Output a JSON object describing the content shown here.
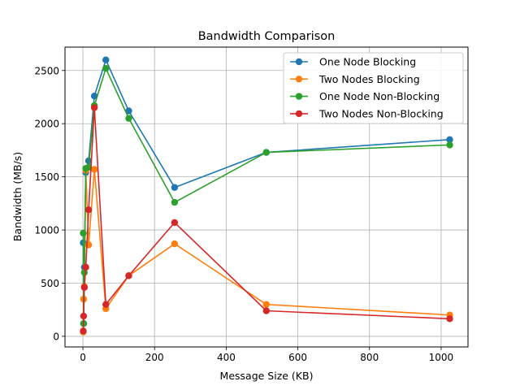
{
  "chart_data": {
    "type": "line",
    "title": "Bandwidth Comparison",
    "xlabel": "Message Size (KB)",
    "ylabel": "Bandwidth (MB/s)",
    "xlim": [
      -50,
      1075
    ],
    "ylim": [
      -100,
      2720
    ],
    "xticks": [
      0,
      200,
      400,
      600,
      800,
      1000
    ],
    "yticks": [
      0,
      500,
      1000,
      1500,
      2000,
      2500
    ],
    "grid": true,
    "legend_position": "top-right",
    "x": [
      1,
      2,
      4,
      8,
      16,
      32,
      64,
      128,
      256,
      512,
      1024
    ],
    "series": [
      {
        "name": "One Node Blocking",
        "color": "#1f77b4",
        "values": [
          880,
          120,
          650,
          1540,
          1650,
          2260,
          2600,
          2120,
          1400,
          1730,
          1850
        ]
      },
      {
        "name": "Two Nodes Blocking",
        "color": "#ff7f0e",
        "values": [
          40,
          350,
          470,
          1560,
          860,
          1570,
          260,
          570,
          870,
          300,
          200
        ]
      },
      {
        "name": "One Node Non-Blocking",
        "color": "#2ca02c",
        "values": [
          970,
          120,
          600,
          1580,
          1590,
          2170,
          2520,
          2050,
          1260,
          1730,
          1800
        ]
      },
      {
        "name": "Two Nodes Non-Blocking",
        "color": "#d62728",
        "values": [
          50,
          190,
          460,
          650,
          1190,
          2150,
          300,
          570,
          1070,
          240,
          165
        ]
      }
    ]
  }
}
